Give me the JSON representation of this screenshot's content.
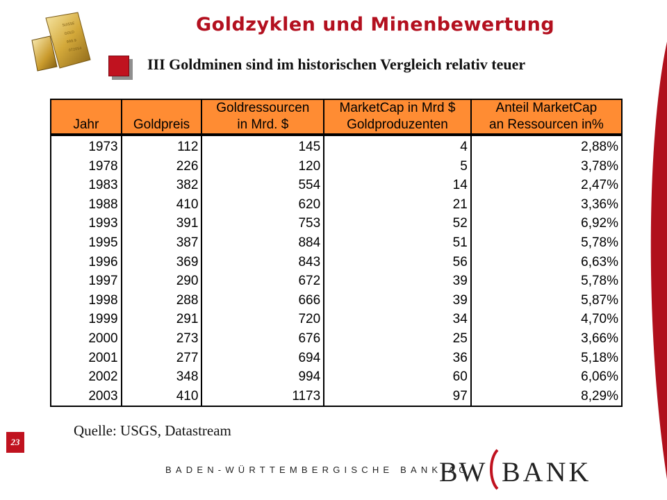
{
  "header": {
    "title": "Goldzyklen und Minenbewertung",
    "subtitle": "III Goldminen sind im historischen Vergleich relativ teuer"
  },
  "table": {
    "columns": [
      {
        "line1": "",
        "line2": "Jahr"
      },
      {
        "line1": "",
        "line2": "Goldpreis"
      },
      {
        "line1": "Goldressourcen",
        "line2": "in Mrd. $"
      },
      {
        "line1": "MarketCap in Mrd $",
        "line2": "Goldproduzenten"
      },
      {
        "line1": "Anteil MarketCap",
        "line2": "an Ressourcen in%"
      }
    ],
    "rows": [
      [
        "1973",
        "112",
        "145",
        "4",
        "2,88%"
      ],
      [
        "1978",
        "226",
        "120",
        "5",
        "3,78%"
      ],
      [
        "1983",
        "382",
        "554",
        "14",
        "2,47%"
      ],
      [
        "1988",
        "410",
        "620",
        "21",
        "3,36%"
      ],
      [
        "1993",
        "391",
        "753",
        "52",
        "6,92%"
      ],
      [
        "1995",
        "387",
        "884",
        "51",
        "5,78%"
      ],
      [
        "1996",
        "369",
        "843",
        "56",
        "6,63%"
      ],
      [
        "1997",
        "290",
        "672",
        "39",
        "5,78%"
      ],
      [
        "1998",
        "288",
        "666",
        "39",
        "5,87%"
      ],
      [
        "1999",
        "291",
        "720",
        "34",
        "4,70%"
      ],
      [
        "2000",
        "273",
        "676",
        "25",
        "3,66%"
      ],
      [
        "2001",
        "277",
        "694",
        "36",
        "5,18%"
      ],
      [
        "2002",
        "348",
        "994",
        "60",
        "6,06%"
      ],
      [
        "2003",
        "410",
        "1173",
        "97",
        "8,29%"
      ]
    ],
    "header_color": "#ff8c33"
  },
  "source": "Quelle: USGS, Datastream",
  "footer": {
    "page_number": "23",
    "bank_name": "BADEN-WÜRTTEMBERGISCHE BANK AG",
    "logo_left": "BW",
    "logo_right": "BANK"
  },
  "colors": {
    "accent": "#c0121f",
    "title": "#b3101f",
    "arc": "#b0101c"
  },
  "icons": {
    "logo": "gold-bars-icon",
    "bullet": "square-bullet-icon"
  }
}
